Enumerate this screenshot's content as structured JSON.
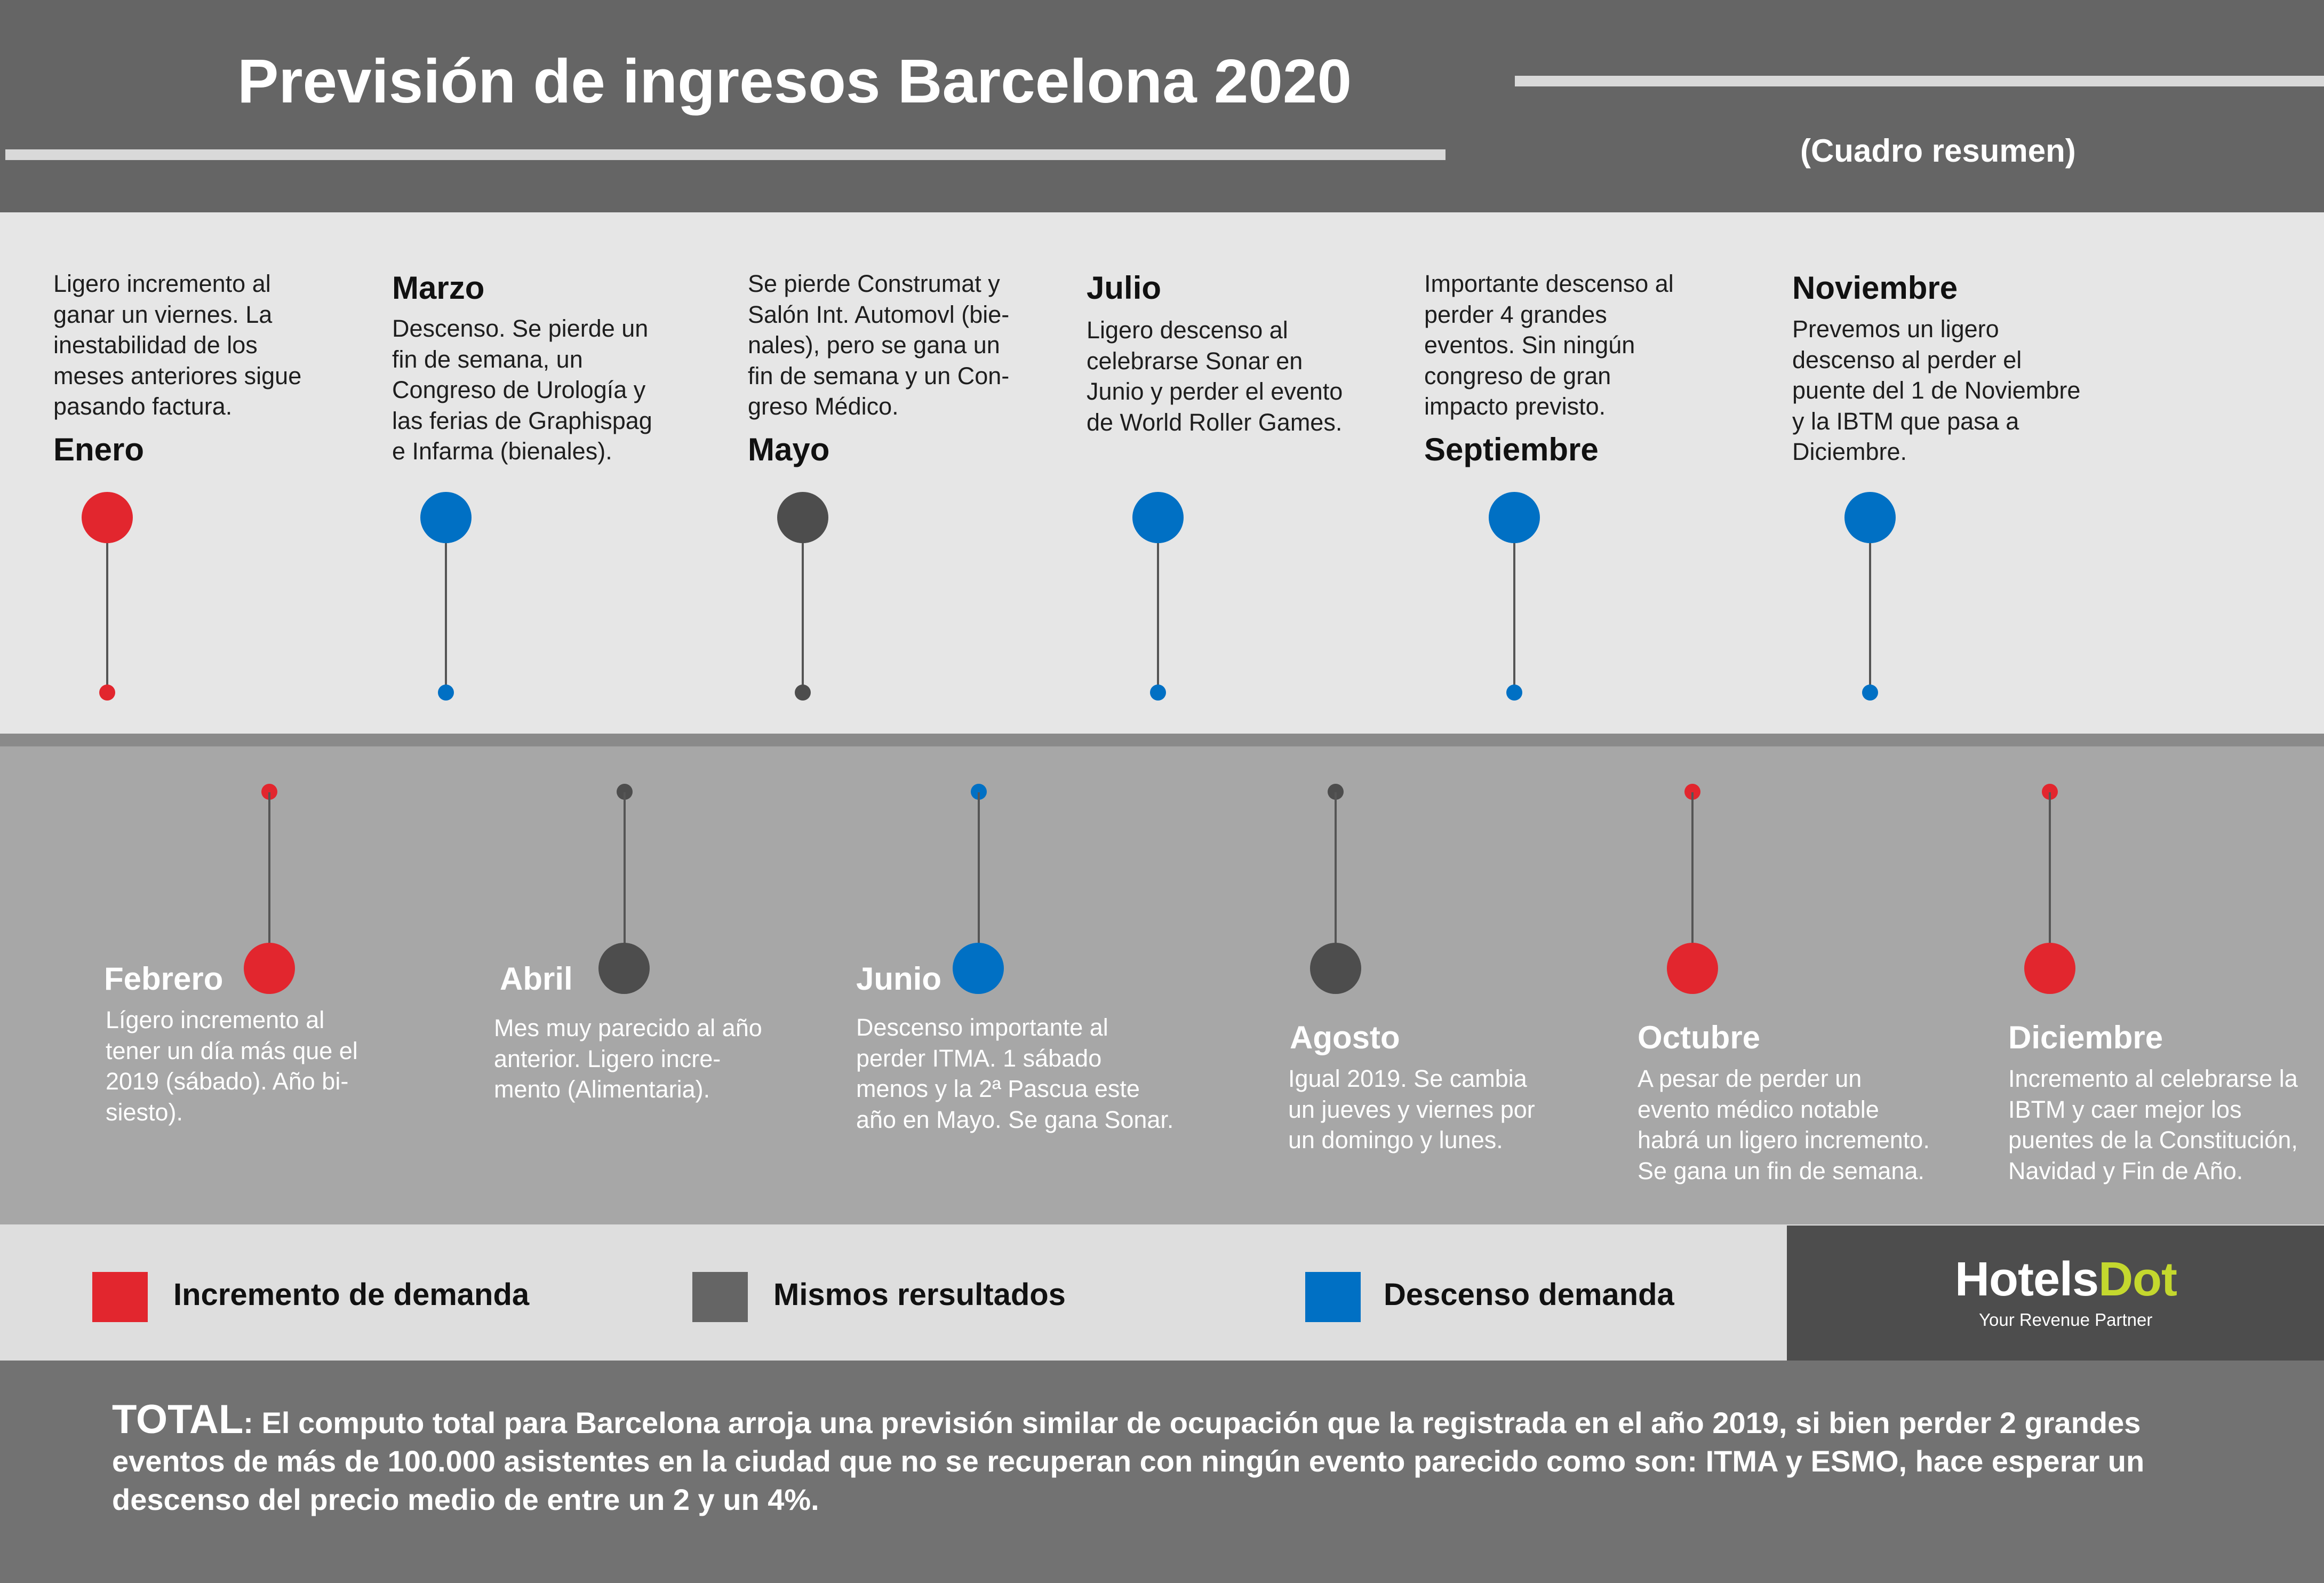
{
  "header": {
    "title": "Previsión de ingresos Barcelona 2020",
    "subtitle": "(Cuadro resumen)"
  },
  "colors": {
    "increase": "#e2262e",
    "same": "#4d4d4d",
    "decrease": "#0070c4"
  },
  "timeline_top": [
    {
      "name": "Enero",
      "status": "increase",
      "lines": [
        "Ligero incremento al",
        "ganar un viernes. La",
        "inestabilidad de los",
        "meses anteriores sigue",
        "pasando factura."
      ]
    },
    {
      "name": "Marzo",
      "status": "decrease",
      "lines": [
        "Descenso. Se pierde un",
        "fin de semana, un",
        "Congreso de Urología y",
        "las ferias de Graphispag",
        "e  Infarma (bienales)."
      ]
    },
    {
      "name": "Mayo",
      "status": "same",
      "lines": [
        "Se pierde Construmat y",
        "Salón Int. Automovl (bie-",
        "nales), pero se gana un",
        "fin de semana  y un Con-",
        "greso Médico."
      ]
    },
    {
      "name": "Julio",
      "status": "decrease",
      "lines": [
        "Ligero descenso al",
        "celebrarse Sonar en",
        "Junio y perder el evento",
        "de World Roller Games."
      ]
    },
    {
      "name": "Septiembre",
      "status": "decrease",
      "lines": [
        "Importante descenso al",
        "perder 4 grandes",
        "eventos.  Sin ningún",
        "congreso de gran",
        "impacto previsto."
      ]
    },
    {
      "name": "Noviembre",
      "status": "decrease",
      "lines": [
        "Prevemos un ligero",
        "descenso al perder el",
        "puente del 1 de Noviembre",
        "y la IBTM que pasa a",
        "Diciembre."
      ]
    }
  ],
  "timeline_bottom": [
    {
      "name": "Febrero",
      "status": "increase",
      "lines": [
        "Lígero incremento al",
        "tener un día más que el",
        "2019 (sábado). Año bi-",
        "siesto)."
      ]
    },
    {
      "name": "Abril",
      "status": "same",
      "lines": [
        "Mes muy parecido al año",
        "anterior. Ligero incre-",
        "mento (Alimentaria)."
      ]
    },
    {
      "name": "Junio",
      "status": "decrease",
      "lines": [
        "Descenso importante al",
        "perder ITMA. 1 sábado",
        "menos y la 2ª Pascua este",
        "año en Mayo. Se gana Sonar."
      ]
    },
    {
      "name": "Agosto",
      "status": "same",
      "lines": [
        "Igual 2019.  Se cambia",
        "un jueves y viernes por",
        "un domingo y lunes."
      ]
    },
    {
      "name": "Octubre",
      "status": "increase",
      "lines": [
        "A pesar de perder un",
        "evento médico notable",
        "habrá un ligero incremento.",
        "Se gana un fin de semana."
      ]
    },
    {
      "name": "Diciembre",
      "status": "increase",
      "lines": [
        "Incremento al celebrarse la",
        "IBTM y caer mejor los",
        "puentes de la Constitución,",
        "Navidad y Fin de Año."
      ]
    }
  ],
  "legend": [
    {
      "label": "Incremento de demanda",
      "status": "increase"
    },
    {
      "label": "Mismos rersultados",
      "status": "same"
    },
    {
      "label": "Descenso demanda",
      "status": "decrease"
    }
  ],
  "logo": {
    "name_main": "Hotels",
    "name_accent": "Dot",
    "tagline": "Your Revenue Partner"
  },
  "total": {
    "label": "TOTAL",
    "text": ":  El computo total para Barcelona arroja una previsión similar de ocupación que la registrada en el año 2019, si bien perder 2 grandes eventos de más de 100.000 asistentes en la ciudad que no se recuperan con ningún evento parecido como son: ITMA y ESMO, hace esperar un descenso del precio medio de entre un 2 y un 4%."
  }
}
